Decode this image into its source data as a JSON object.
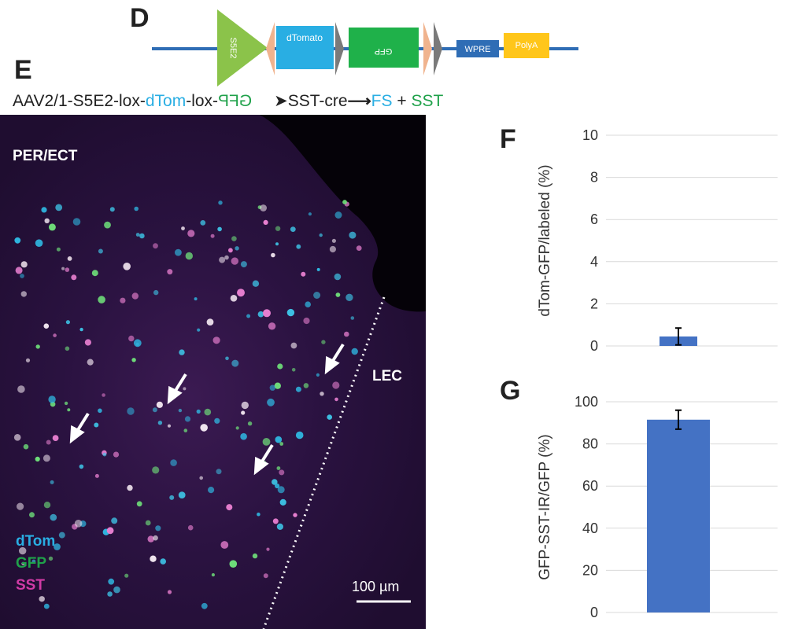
{
  "panels": {
    "D": "D",
    "E": "E",
    "F": "F",
    "G": "G"
  },
  "construct": {
    "promoter": "S5E2",
    "gene1": "dTomato",
    "gene2": "GFP",
    "wpre": "WPRE",
    "polya": "PolyA",
    "colors": {
      "promoter": "#8bc34a",
      "lox": "#f0b38e",
      "dtomato": "#29aee3",
      "gfp": "#1fb14a",
      "wpre": "#2f6db5",
      "polya": "#ffc61a",
      "backbone": "#2f6db5"
    }
  },
  "title_line": {
    "part1": "AAV2/1-S5E2-lox-",
    "dtom": "dTom",
    "part2": "-lox-",
    "gfp_mirrored": "GFP",
    "arrow1": "➤",
    "sst_cre": "SST-cre",
    "arrow2": "⟶",
    "fs": "FS",
    "plus": " + ",
    "sst": "SST"
  },
  "micrograph": {
    "region_left": "PER/ECT",
    "region_right": "LEC",
    "legend": [
      {
        "text": "dTom",
        "color": "#29aee3"
      },
      {
        "text": "GFP",
        "color": "#1fa14a"
      },
      {
        "text": "SST",
        "color": "#d13ba6"
      }
    ],
    "scale_bar": "100 µm"
  },
  "chart_data": [
    {
      "type": "bar",
      "panel": "F",
      "title": "",
      "xlabel": "",
      "ylabel": "dTom-GFP/labeled (%)",
      "ylim": [
        0,
        10
      ],
      "yticks": [
        0,
        2,
        4,
        6,
        8,
        10
      ],
      "grid": true,
      "categories": [
        ""
      ],
      "values": [
        0.45
      ],
      "errors": [
        0.4
      ],
      "bar_color": "#4472c4"
    },
    {
      "type": "bar",
      "panel": "G",
      "title": "",
      "xlabel": "",
      "ylabel": "GFP-SST-IR/GFP (%)",
      "ylim": [
        0,
        100
      ],
      "yticks": [
        0,
        20,
        40,
        60,
        80,
        100
      ],
      "grid": true,
      "categories": [
        ""
      ],
      "values": [
        91.5
      ],
      "errors": [
        4.5
      ],
      "bar_color": "#4472c4"
    }
  ]
}
